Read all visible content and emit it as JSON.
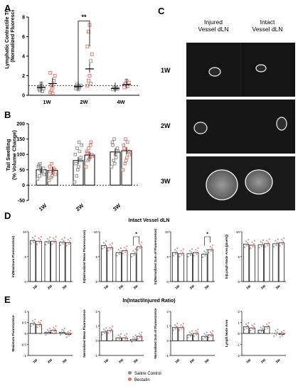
{
  "panels": {
    "A": {
      "letter": "A",
      "ylabel": "Lymphatic Contractile Transport\n(Normalized Fluorescence)",
      "significance": "**",
      "chart_data": {
        "type": "scatter",
        "categories": [
          "1W",
          "2W",
          "4W"
        ],
        "ylim": [
          0,
          8
        ],
        "yticks": [
          0,
          2,
          4,
          6,
          8
        ],
        "reference_line": 1,
        "series": [
          {
            "name": "Saline Control",
            "color": "#8a8a8a",
            "means": [
              0.8,
              0.9,
              0.7
            ],
            "points": [
              [
                0.6,
                0.9,
                1.2,
                0.4,
                0.7,
                0.8,
                0.5,
                1.0
              ],
              [
                0.9,
                1.1,
                0.6,
                0.8,
                1.0,
                0.7,
                0.9,
                0.95
              ],
              [
                0.6,
                0.8,
                0.7,
                0.75,
                0.65
              ]
            ]
          },
          {
            "name": "Bestatin",
            "color": "#d9766a",
            "means": [
              1.2,
              2.7,
              1.1
            ],
            "points": [
              [
                0.3,
                0.5,
                0.8,
                1.5,
                2.0,
                2.3,
                1.0,
                0.2
              ],
              [
                1.0,
                1.5,
                2.0,
                3.5,
                4.2,
                5.0,
                6.5,
                7.2,
                1.2
              ],
              [
                0.8,
                1.2,
                1.5,
                0.9,
                1.3
              ]
            ]
          }
        ]
      }
    },
    "B": {
      "letter": "B",
      "ylabel": "Tail Swelling\n(% Volume Change)",
      "chart_data": {
        "type": "bar",
        "categories": [
          "1W",
          "2W",
          "3W"
        ],
        "ylim": [
          -50,
          200
        ],
        "yticks": [
          -50,
          0,
          50,
          100,
          150,
          200
        ],
        "series": [
          {
            "name": "Saline Control",
            "color": "#8a8a8a",
            "values": [
              50,
              80,
              108
            ],
            "points": [
              [
                20,
                30,
                40,
                55,
                60,
                70,
                45,
                35,
                65,
                50
              ],
              [
                10,
                30,
                60,
                80,
                100,
                120,
                140,
                90,
                70,
                50,
                110,
                130
              ],
              [
                60,
                80,
                100,
                120,
                140,
                150,
                90,
                110,
                130,
                70
              ]
            ]
          },
          {
            "name": "Bestatin",
            "color": "#d9766a",
            "values": [
              48,
              98,
              112
            ],
            "points": [
              [
                15,
                25,
                40,
                50,
                60,
                70,
                55,
                35,
                45,
                30
              ],
              [
                60,
                80,
                90,
                100,
                110,
                120,
                130,
                95,
                105,
                85,
                140
              ],
              [
                50,
                70,
                90,
                110,
                130,
                150,
                140,
                100,
                120,
                80
              ]
            ]
          }
        ]
      }
    },
    "C": {
      "letter": "C",
      "col_titles": [
        "Injured\nVessel dLN",
        "Intact\nVessel dLN"
      ],
      "rows": [
        "1W",
        "2W",
        "3W"
      ]
    },
    "D": {
      "letter": "D",
      "title": "Intact Vessel dLN",
      "charts": [
        {
          "ylabel": "ln(Maximum Fluorescence)",
          "categories": [
            "1W",
            "2W",
            "3W"
          ],
          "ylim": [
            0,
            10
          ],
          "yticks": [
            0,
            5,
            10
          ],
          "series": [
            {
              "name": "Saline Control",
              "values": [
                8.2,
                8.0,
                7.9
              ]
            },
            {
              "name": "Bestatin",
              "values": [
                8.1,
                8.1,
                7.8
              ]
            }
          ],
          "significance": ""
        },
        {
          "ylabel": "ln(Normalized Mean Fluorescence)",
          "categories": [
            "1W",
            "2W",
            "3W"
          ],
          "ylim": [
            0,
            10
          ],
          "yticks": [
            0,
            5,
            10
          ],
          "series": [
            {
              "name": "Saline Control",
              "values": [
                7.2,
                5.8,
                5.6
              ]
            },
            {
              "name": "Bestatin",
              "values": [
                6.8,
                6.2,
                7.0
              ]
            }
          ],
          "significance": "*"
        },
        {
          "ylabel": "ln(Normalized Sum of Fluorescence)",
          "categories": [
            "1W",
            "2W",
            "3W"
          ],
          "ylim": [
            0,
            10
          ],
          "yticks": [
            0,
            5,
            10
          ],
          "series": [
            {
              "name": "Saline Control",
              "values": [
                5.8,
                5.6,
                5.5
              ]
            },
            {
              "name": "Bestatin",
              "values": [
                5.6,
                5.8,
                6.4
              ]
            }
          ],
          "significance": "*"
        },
        {
          "ylabel": "ln(Lymph Node Area [pixels])",
          "categories": [
            "1W",
            "2W",
            "3W"
          ],
          "ylim": [
            0,
            10
          ],
          "yticks": [
            0,
            5,
            10
          ],
          "series": [
            {
              "name": "Saline Control",
              "values": [
                7.5,
                7.4,
                7.6
              ]
            },
            {
              "name": "Bestatin",
              "values": [
                7.3,
                7.6,
                7.8
              ]
            }
          ],
          "significance": ""
        }
      ]
    },
    "E": {
      "letter": "E",
      "title": "ln(Intact/Injured Ratio)",
      "charts": [
        {
          "ylabel": "Maximum Fluorescence",
          "categories": [
            "1W",
            "2W",
            "3W"
          ],
          "ylim": [
            -1.0,
            1.0
          ],
          "yticks": [
            -1.0,
            -0.5,
            0.0,
            0.5,
            1.0
          ],
          "series": [
            {
              "name": "Saline Control",
              "values": [
                0.45,
                0.05,
                0.05
              ]
            },
            {
              "name": "Bestatin",
              "values": [
                0.4,
                0.15,
                -0.05
              ]
            }
          ]
        },
        {
          "ylabel": "Normalized Mean Fluorescence",
          "categories": [
            "1W",
            "2W",
            "3W"
          ],
          "ylim": [
            -1,
            2
          ],
          "yticks": [
            -1,
            0,
            1,
            2
          ],
          "series": [
            {
              "name": "Saline Control",
              "values": [
                0.6,
                0.2,
                0.1
              ]
            },
            {
              "name": "Bestatin",
              "values": [
                0.7,
                0.2,
                0.3
              ]
            }
          ]
        },
        {
          "ylabel": "Normalized Sum of Fluorescence",
          "categories": [
            "1W",
            "2W",
            "3W"
          ],
          "ylim": [
            -1,
            2
          ],
          "yticks": [
            -1,
            0,
            1,
            2
          ],
          "series": [
            {
              "name": "Saline Control",
              "values": [
                0.9,
                0.4,
                0.3
              ]
            },
            {
              "name": "Bestatin",
              "values": [
                0.9,
                0.5,
                0.4
              ]
            }
          ]
        },
        {
          "ylabel": "Lymph Node Area",
          "categories": [
            "1W",
            "2W",
            "3W"
          ],
          "ylim": [
            -2,
            2
          ],
          "yticks": [
            -2,
            -1,
            0,
            1,
            2
          ],
          "series": [
            {
              "name": "Saline Control",
              "values": [
                0.6,
                0.3,
                0.0
              ]
            },
            {
              "name": "Bestatin",
              "values": [
                0.5,
                0.6,
                -0.1
              ]
            }
          ]
        }
      ]
    }
  },
  "legend": [
    {
      "name": "Saline Control",
      "color": "#8a8a8a"
    },
    {
      "name": "Bestatin",
      "color": "#d9766a"
    }
  ]
}
